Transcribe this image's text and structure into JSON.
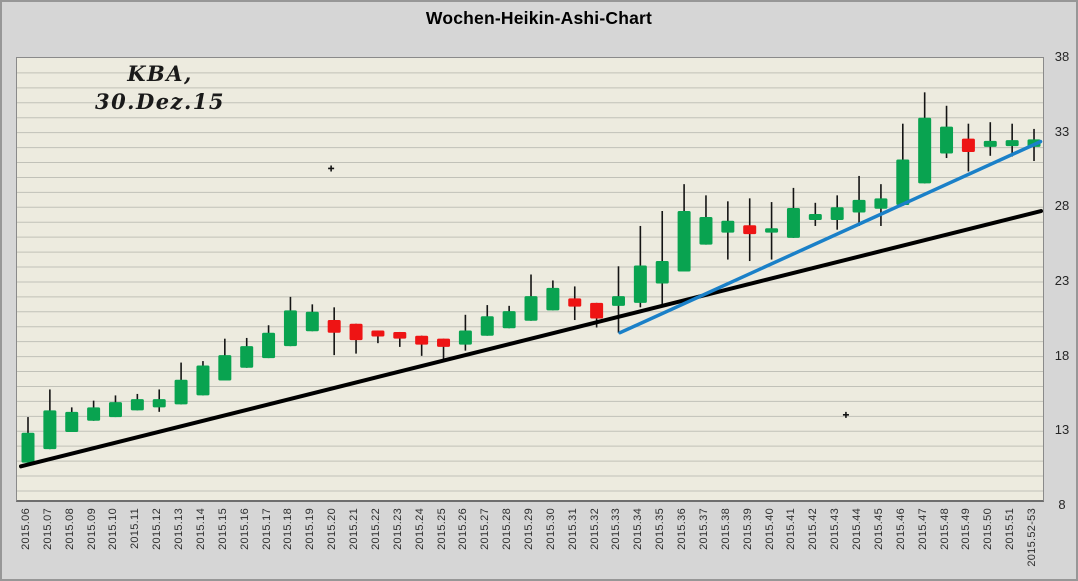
{
  "chart": {
    "title": "Wochen-Heikin-Ashi-Chart",
    "annotation": {
      "line1": "KBA,",
      "line2": "30.Dez.15"
    }
  },
  "colors": {
    "outer_background": "#d6d6d6",
    "plot_background": "#edebdf",
    "gridline": "#c1c1b8",
    "candle_up": "#09a350",
    "candle_down": "#ee1414",
    "wick": "#141414",
    "trendline_black": "#000000",
    "trendline_blue": "#1a80c8",
    "axis_text": "#2e2e2e"
  },
  "chart_data": {
    "type": "candlestick",
    "subtype": "heikin-ashi-weekly",
    "title": "Wochen-Heikin-Ashi-Chart",
    "annotation_text": "KBA, 30.Dez.15",
    "xlabel": "",
    "ylabel": "",
    "y_ticks": [
      8,
      13,
      18,
      23,
      28,
      33,
      38
    ],
    "y_range_visible": [
      8.4,
      38
    ],
    "grid_step": 1,
    "grid_on": true,
    "legend": "none",
    "categories": [
      "2015.06",
      "2015.07",
      "2015.08",
      "2015.09",
      "2015.10",
      "2015.11",
      "2015.12",
      "2015.13",
      "2015.14",
      "2015.15",
      "2015.16",
      "2015.17",
      "2015.18",
      "2015.19",
      "2015.20",
      "2015.21",
      "2015.22",
      "2015.23",
      "2015.24",
      "2015.25",
      "2015.26",
      "2015.27",
      "2015.28",
      "2015.29",
      "2015.30",
      "2015.31",
      "2015.32",
      "2015.33",
      "2015.34",
      "2015.35",
      "2015.36",
      "2015.37",
      "2015.38",
      "2015.39",
      "2015.40",
      "2015.41",
      "2015.42",
      "2015.43",
      "2015.44",
      "2015.45",
      "2015.46",
      "2015.47",
      "2015.48",
      "2015.49",
      "2015.50",
      "2015.51",
      "2015.52-53"
    ],
    "candles": [
      {
        "t": "2015.06",
        "o": 10.9,
        "h": 13.95,
        "l": 10.9,
        "c": 12.9,
        "dir": "up"
      },
      {
        "t": "2015.07",
        "o": 11.8,
        "h": 15.8,
        "l": 11.8,
        "c": 14.4,
        "dir": "up"
      },
      {
        "t": "2015.08",
        "o": 12.95,
        "h": 14.6,
        "l": 12.95,
        "c": 14.3,
        "dir": "up"
      },
      {
        "t": "2015.09",
        "o": 13.7,
        "h": 15.05,
        "l": 13.7,
        "c": 14.6,
        "dir": "up"
      },
      {
        "t": "2015.10",
        "o": 13.95,
        "h": 15.4,
        "l": 13.95,
        "c": 14.95,
        "dir": "up"
      },
      {
        "t": "2015.11",
        "o": 14.4,
        "h": 15.5,
        "l": 14.4,
        "c": 15.15,
        "dir": "up"
      },
      {
        "t": "2015.12",
        "o": 14.6,
        "h": 15.8,
        "l": 14.3,
        "c": 15.15,
        "dir": "up"
      },
      {
        "t": "2015.13",
        "o": 14.8,
        "h": 17.6,
        "l": 14.8,
        "c": 16.45,
        "dir": "up"
      },
      {
        "t": "2015.14",
        "o": 15.4,
        "h": 17.7,
        "l": 15.4,
        "c": 17.4,
        "dir": "up"
      },
      {
        "t": "2015.15",
        "o": 16.4,
        "h": 19.2,
        "l": 16.4,
        "c": 18.1,
        "dir": "up"
      },
      {
        "t": "2015.16",
        "o": 17.25,
        "h": 19.25,
        "l": 17.25,
        "c": 18.7,
        "dir": "up"
      },
      {
        "t": "2015.17",
        "o": 17.9,
        "h": 20.1,
        "l": 17.9,
        "c": 19.6,
        "dir": "up"
      },
      {
        "t": "2015.18",
        "o": 18.7,
        "h": 22.0,
        "l": 18.7,
        "c": 21.1,
        "dir": "up"
      },
      {
        "t": "2015.19",
        "o": 19.7,
        "h": 21.5,
        "l": 19.7,
        "c": 21.0,
        "dir": "up"
      },
      {
        "t": "2015.20",
        "o": 20.45,
        "h": 21.3,
        "l": 18.1,
        "c": 19.6,
        "dir": "down"
      },
      {
        "t": "2015.21",
        "o": 20.2,
        "h": 20.2,
        "l": 18.2,
        "c": 19.1,
        "dir": "down"
      },
      {
        "t": "2015.22",
        "o": 19.75,
        "h": 19.75,
        "l": 18.9,
        "c": 19.35,
        "dir": "down"
      },
      {
        "t": "2015.23",
        "o": 19.65,
        "h": 19.65,
        "l": 18.65,
        "c": 19.2,
        "dir": "down"
      },
      {
        "t": "2015.24",
        "o": 19.4,
        "h": 19.4,
        "l": 18.05,
        "c": 18.8,
        "dir": "down"
      },
      {
        "t": "2015.25",
        "o": 19.2,
        "h": 19.2,
        "l": 17.8,
        "c": 18.65,
        "dir": "down"
      },
      {
        "t": "2015.26",
        "o": 18.8,
        "h": 20.8,
        "l": 18.4,
        "c": 19.75,
        "dir": "up"
      },
      {
        "t": "2015.27",
        "o": 19.4,
        "h": 21.45,
        "l": 19.4,
        "c": 20.7,
        "dir": "up"
      },
      {
        "t": "2015.28",
        "o": 19.9,
        "h": 21.4,
        "l": 19.9,
        "c": 21.05,
        "dir": "up"
      },
      {
        "t": "2015.29",
        "o": 20.4,
        "h": 23.5,
        "l": 20.4,
        "c": 22.05,
        "dir": "up"
      },
      {
        "t": "2015.30",
        "o": 21.1,
        "h": 23.1,
        "l": 21.1,
        "c": 22.6,
        "dir": "up"
      },
      {
        "t": "2015.31",
        "o": 21.9,
        "h": 22.7,
        "l": 20.45,
        "c": 21.35,
        "dir": "down"
      },
      {
        "t": "2015.32",
        "o": 21.6,
        "h": 21.6,
        "l": 19.95,
        "c": 20.55,
        "dir": "down"
      },
      {
        "t": "2015.33",
        "o": 21.4,
        "h": 24.05,
        "l": 19.6,
        "c": 22.05,
        "dir": "up"
      },
      {
        "t": "2015.34",
        "o": 21.6,
        "h": 26.75,
        "l": 21.3,
        "c": 24.1,
        "dir": "up"
      },
      {
        "t": "2015.35",
        "o": 22.9,
        "h": 27.75,
        "l": 21.4,
        "c": 24.4,
        "dir": "up"
      },
      {
        "t": "2015.36",
        "o": 23.7,
        "h": 29.55,
        "l": 23.7,
        "c": 27.75,
        "dir": "up"
      },
      {
        "t": "2015.37",
        "o": 25.5,
        "h": 28.8,
        "l": 25.5,
        "c": 27.35,
        "dir": "up"
      },
      {
        "t": "2015.38",
        "o": 26.3,
        "h": 28.4,
        "l": 24.5,
        "c": 27.1,
        "dir": "up"
      },
      {
        "t": "2015.39",
        "o": 26.8,
        "h": 28.6,
        "l": 24.4,
        "c": 26.2,
        "dir": "down"
      },
      {
        "t": "2015.40",
        "o": 26.3,
        "h": 28.35,
        "l": 24.5,
        "c": 26.6,
        "dir": "up"
      },
      {
        "t": "2015.41",
        "o": 25.95,
        "h": 29.3,
        "l": 25.95,
        "c": 27.95,
        "dir": "up"
      },
      {
        "t": "2015.42",
        "o": 27.15,
        "h": 28.3,
        "l": 26.75,
        "c": 27.55,
        "dir": "up"
      },
      {
        "t": "2015.43",
        "o": 27.15,
        "h": 28.8,
        "l": 26.5,
        "c": 28.0,
        "dir": "up"
      },
      {
        "t": "2015.44",
        "o": 27.65,
        "h": 30.1,
        "l": 26.75,
        "c": 28.5,
        "dir": "up"
      },
      {
        "t": "2015.45",
        "o": 27.9,
        "h": 29.55,
        "l": 26.75,
        "c": 28.6,
        "dir": "up"
      },
      {
        "t": "2015.46",
        "o": 28.15,
        "h": 33.6,
        "l": 28.1,
        "c": 31.2,
        "dir": "up"
      },
      {
        "t": "2015.47",
        "o": 29.6,
        "h": 35.7,
        "l": 29.6,
        "c": 34.0,
        "dir": "up"
      },
      {
        "t": "2015.48",
        "o": 31.6,
        "h": 34.8,
        "l": 31.3,
        "c": 33.4,
        "dir": "up"
      },
      {
        "t": "2015.49",
        "o": 32.6,
        "h": 33.6,
        "l": 30.4,
        "c": 31.7,
        "dir": "down"
      },
      {
        "t": "2015.50",
        "o": 32.05,
        "h": 33.7,
        "l": 31.45,
        "c": 32.45,
        "dir": "up"
      },
      {
        "t": "2015.51",
        "o": 32.1,
        "h": 33.6,
        "l": 31.4,
        "c": 32.5,
        "dir": "up"
      },
      {
        "t": "2015.52-53",
        "o": 32.05,
        "h": 33.25,
        "l": 31.1,
        "c": 32.55,
        "dir": "up"
      }
    ],
    "trendlines": [
      {
        "name": "long-term-uptrend-line",
        "color": "#000000",
        "width": 4,
        "start": {
          "x_index": -0.32,
          "value": 10.65
        },
        "end": {
          "x_index": 46.32,
          "value": 27.75
        }
      },
      {
        "name": "short-term-uptrend-line",
        "color": "#1a80c8",
        "width": 3.5,
        "start": {
          "x_index": 27.07,
          "value": 19.6
        },
        "end": {
          "x_index": 46.3,
          "value": 32.4
        }
      }
    ],
    "point_marks": [
      {
        "x_index": 13.86,
        "value": 30.6,
        "shape": "plus"
      },
      {
        "x_index": 37.4,
        "value": 14.1,
        "shape": "plus"
      }
    ],
    "layout_hints": {
      "y_axis_side": "right",
      "x_labels_rotated_deg": 90
    }
  }
}
